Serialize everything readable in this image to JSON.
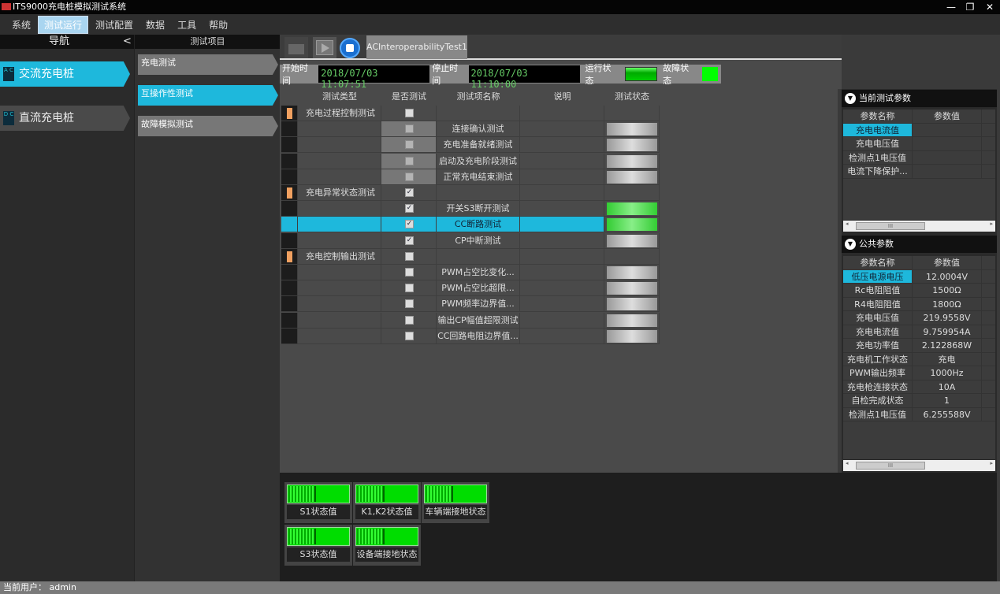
{
  "window": {
    "title": "ITS9000充电桩模拟测试系统",
    "min": "—",
    "max": "❐",
    "close": "✕"
  },
  "menu": [
    "系统",
    "测试运行",
    "测试配置",
    "数据",
    "工具",
    "帮助"
  ],
  "nav": {
    "title": "导航",
    "collapse": "<",
    "items": [
      {
        "icon": "A C",
        "label": "交流充电桩",
        "active": true
      },
      {
        "icon": "D C",
        "label": "直流充电桩",
        "active": false
      }
    ]
  },
  "test_items": {
    "title": "测试项目",
    "items": [
      {
        "label": "充电测试",
        "active": false
      },
      {
        "label": "互操作性测试",
        "active": true
      },
      {
        "label": "故障模拟测试",
        "active": false
      }
    ]
  },
  "toolbar": {
    "tab": "ACInteroperabilityTest1"
  },
  "timebar": {
    "start_label": "开始时间",
    "start": "2018/07/03 11:07:51",
    "stop_label": "停止时间",
    "stop": "2018/07/03 11:10:00",
    "run_label": "运行状态",
    "fault_label": "故障状态"
  },
  "table": {
    "headers": [
      "测试类型",
      "是否测试",
      "测试项名称",
      "说明",
      "测试状态"
    ],
    "rows": [
      {
        "group": true,
        "type": "充电过程控制测试",
        "checked": false,
        "name": "",
        "status": ""
      },
      {
        "type": "",
        "checked": false,
        "disabled": true,
        "name": "连接确认测试",
        "status": "gray"
      },
      {
        "type": "",
        "checked": false,
        "disabled": true,
        "name": "充电准备就绪测试",
        "status": "gray"
      },
      {
        "type": "",
        "checked": false,
        "disabled": true,
        "name": "启动及充电阶段测试",
        "status": "gray"
      },
      {
        "type": "",
        "checked": false,
        "disabled": true,
        "name": "正常充电结束测试",
        "status": "gray"
      },
      {
        "group": true,
        "type": "充电异常状态测试",
        "checked": true,
        "name": "",
        "status": ""
      },
      {
        "type": "",
        "checked": true,
        "name": "开关S3断开测试",
        "status": "green"
      },
      {
        "type": "",
        "checked": true,
        "name": "CC断路测试",
        "status": "green",
        "selected": true
      },
      {
        "type": "",
        "checked": true,
        "name": "CP中断测试",
        "status": "gray"
      },
      {
        "group": true,
        "type": "充电控制输出测试",
        "checked": false,
        "name": "",
        "status": ""
      },
      {
        "type": "",
        "checked": false,
        "name": "PWM占空比变化...",
        "status": "gray"
      },
      {
        "type": "",
        "checked": false,
        "name": "PWM占空比超限...",
        "status": "gray"
      },
      {
        "type": "",
        "checked": false,
        "name": "PWM频率边界值...",
        "status": "gray"
      },
      {
        "type": "",
        "checked": false,
        "name": "输出CP幅值超限测试",
        "status": "gray"
      },
      {
        "type": "",
        "checked": false,
        "name": "CC回路电阻边界值...",
        "status": "gray"
      }
    ]
  },
  "current_params": {
    "title": "当前测试参数",
    "headers": [
      "参数名称",
      "参数值"
    ],
    "rows": [
      [
        "充电电流值",
        ""
      ],
      [
        "充电电压值",
        ""
      ],
      [
        "检测点1电压值",
        ""
      ],
      [
        "电流下降保护...",
        ""
      ]
    ]
  },
  "public_params": {
    "title": "公共参数",
    "headers": [
      "参数名称",
      "参数值"
    ],
    "rows": [
      [
        "低压电源电压",
        "12.0004V"
      ],
      [
        "Rc电阻阻值",
        "1500Ω"
      ],
      [
        "R4电阻阻值",
        "1800Ω"
      ],
      [
        "充电电压值",
        "219.9558V"
      ],
      [
        "充电电流值",
        "9.759954A"
      ],
      [
        "充电功率值",
        "2.122868W"
      ],
      [
        "充电机工作状态",
        "充电"
      ],
      [
        "PWM输出频率",
        "1000Hz"
      ],
      [
        "充电枪连接状态",
        "10A"
      ],
      [
        "自检完成状态",
        "1"
      ],
      [
        "检测点1电压值",
        "6.255588V"
      ]
    ]
  },
  "scroll_thumb": "III",
  "lamps": [
    "S1状态值",
    "K1,K2状态值",
    "车辆端接地状态",
    "S3状态值",
    "设备端接地状态"
  ],
  "status": {
    "user": "当前用户： admin"
  },
  "colors": {
    "accent": "#1eb8dc",
    "ok": "#00dd00",
    "marker": "#f0a060"
  }
}
